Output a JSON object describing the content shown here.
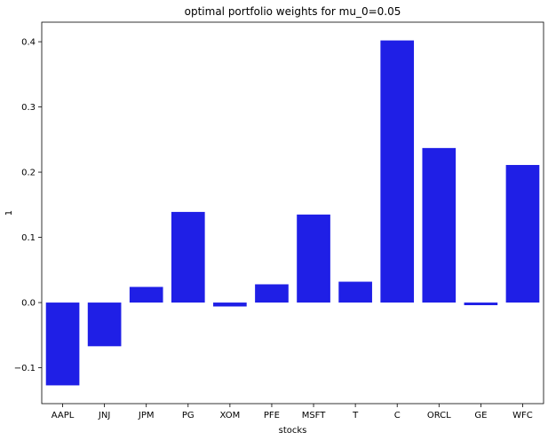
{
  "chart_data": {
    "type": "bar",
    "title": "optimal portfolio weights for mu_0=0.05",
    "xlabel": "stocks",
    "ylabel": "1",
    "categories": [
      "AAPL",
      "JNJ",
      "JPM",
      "PG",
      "XOM",
      "PFE",
      "MSFT",
      "T",
      "C",
      "ORCL",
      "GE",
      "WFC"
    ],
    "values": [
      -0.127,
      -0.067,
      0.024,
      0.139,
      -0.006,
      0.028,
      0.135,
      0.032,
      0.402,
      0.237,
      -0.004,
      0.211
    ],
    "ylim": [
      -0.155,
      0.43
    ],
    "yticks": [
      -0.1,
      0.0,
      0.1,
      0.2,
      0.3,
      0.4
    ],
    "ytick_labels": [
      "−0.1",
      "0.0",
      "0.1",
      "0.2",
      "0.3",
      "0.4"
    ],
    "bar_color": "#1f1fe6",
    "grid": false,
    "legend": "none"
  }
}
